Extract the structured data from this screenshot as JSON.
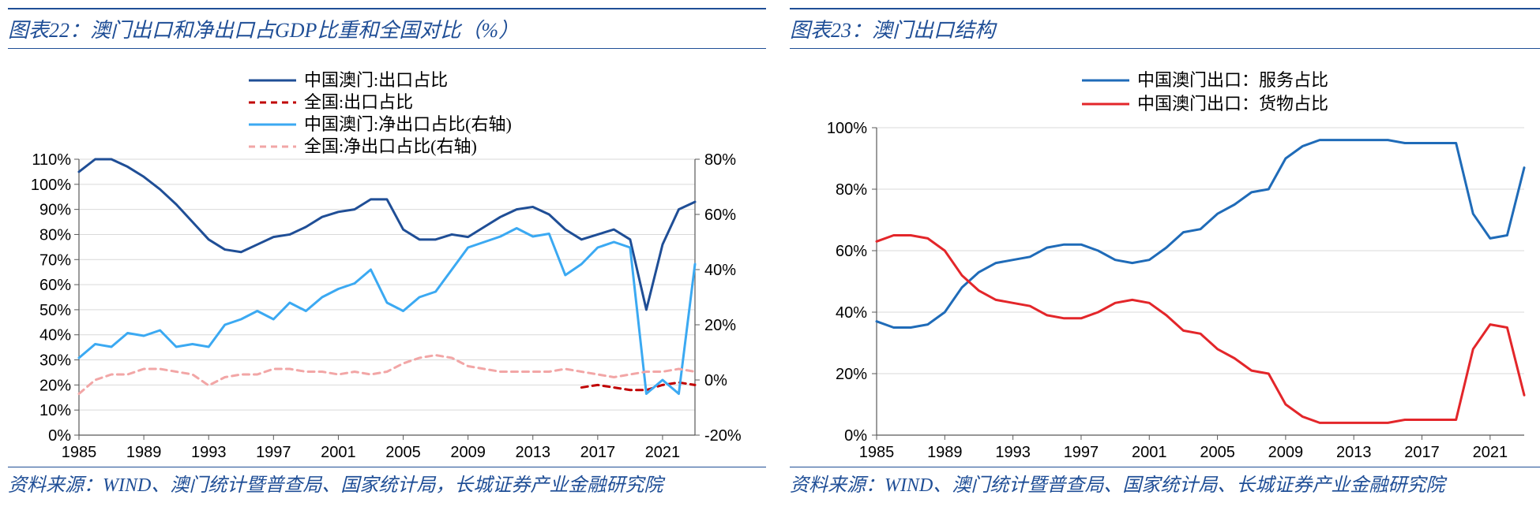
{
  "left": {
    "title": "图表22：澳门出口和净出口占GDP比重和全国对比（%）",
    "source": "资料来源：WIND、澳门统计暨普查局、国家统计局，长城证券产业金融研究院",
    "type": "line",
    "background_color": "#ffffff",
    "grid_color": "#d9d9d9",
    "axis_color": "#595959",
    "label_fontsize": 20,
    "x": {
      "min": 1985,
      "max": 2023,
      "ticks": [
        1985,
        1989,
        1993,
        1997,
        2001,
        2005,
        2009,
        2013,
        2017,
        2021
      ]
    },
    "yL": {
      "min": 0,
      "max": 110,
      "step": 10,
      "suffix": "%"
    },
    "yR": {
      "min": -20,
      "max": 80,
      "step": 20,
      "suffix": "%"
    },
    "legend_items": [
      {
        "label": "中国澳门:出口占比",
        "color": "#1f4e96",
        "dash": null,
        "width": 3,
        "axis": "L"
      },
      {
        "label": "全国:出口占比",
        "color": "#c00000",
        "dash": "8 6",
        "width": 3,
        "axis": "L"
      },
      {
        "label": "中国澳门:净出口占比(右轴)",
        "color": "#3ba9f2",
        "dash": null,
        "width": 3,
        "axis": "R"
      },
      {
        "label": "全国:净出口占比(右轴)",
        "color": "#f2a6a6",
        "dash": "8 6",
        "width": 3,
        "axis": "R"
      }
    ],
    "series": {
      "macau_export": {
        "color": "#1f4e96",
        "dash": null,
        "width": 3,
        "axis": "L",
        "x": [
          1985,
          1986,
          1987,
          1988,
          1989,
          1990,
          1991,
          1992,
          1993,
          1994,
          1995,
          1996,
          1997,
          1998,
          1999,
          2000,
          2001,
          2002,
          2003,
          2004,
          2005,
          2006,
          2007,
          2008,
          2009,
          2010,
          2011,
          2012,
          2013,
          2014,
          2015,
          2016,
          2017,
          2018,
          2019,
          2020,
          2021,
          2022,
          2023
        ],
        "y": [
          105,
          110,
          110,
          107,
          103,
          98,
          92,
          85,
          78,
          74,
          73,
          76,
          79,
          80,
          83,
          87,
          89,
          90,
          94,
          94,
          82,
          78,
          78,
          80,
          79,
          83,
          87,
          90,
          91,
          88,
          82,
          78,
          80,
          82,
          78,
          50,
          76,
          90,
          93
        ]
      },
      "china_export": {
        "color": "#c00000",
        "dash": "8 6",
        "width": 3,
        "axis": "L",
        "x": [
          2016,
          2017,
          2018,
          2019,
          2020,
          2021,
          2022,
          2023
        ],
        "y": [
          19,
          20,
          19,
          18,
          18,
          20,
          21,
          20
        ]
      },
      "macau_net": {
        "color": "#3ba9f2",
        "dash": null,
        "width": 3,
        "axis": "R",
        "x": [
          1985,
          1986,
          1987,
          1988,
          1989,
          1990,
          1991,
          1992,
          1993,
          1994,
          1995,
          1996,
          1997,
          1998,
          1999,
          2000,
          2001,
          2002,
          2003,
          2004,
          2005,
          2006,
          2007,
          2008,
          2009,
          2010,
          2011,
          2012,
          2013,
          2014,
          2015,
          2016,
          2017,
          2018,
          2019,
          2020,
          2021,
          2022,
          2023
        ],
        "y": [
          8,
          13,
          12,
          17,
          16,
          18,
          12,
          13,
          12,
          20,
          22,
          25,
          22,
          28,
          25,
          30,
          33,
          35,
          40,
          28,
          25,
          30,
          32,
          40,
          48,
          50,
          52,
          55,
          52,
          53,
          38,
          42,
          48,
          50,
          48,
          -5,
          0,
          -5,
          42
        ]
      },
      "china_net": {
        "color": "#f2a6a6",
        "dash": "8 6",
        "width": 3,
        "axis": "R",
        "x": [
          1985,
          1986,
          1987,
          1988,
          1989,
          1990,
          1991,
          1992,
          1993,
          1994,
          1995,
          1996,
          1997,
          1998,
          1999,
          2000,
          2001,
          2002,
          2003,
          2004,
          2005,
          2006,
          2007,
          2008,
          2009,
          2010,
          2011,
          2012,
          2013,
          2014,
          2015,
          2016,
          2017,
          2018,
          2019,
          2020,
          2021,
          2022,
          2023
        ],
        "y": [
          -5,
          0,
          2,
          2,
          4,
          4,
          3,
          2,
          -2,
          1,
          2,
          2,
          4,
          4,
          3,
          3,
          2,
          3,
          2,
          3,
          6,
          8,
          9,
          8,
          5,
          4,
          3,
          3,
          3,
          3,
          4,
          3,
          2,
          1,
          2,
          3,
          3,
          4,
          3
        ]
      }
    }
  },
  "right": {
    "title": "图表23：澳门出口结构",
    "source": "资料来源：WIND、澳门统计暨普查局、国家统计局、长城证券产业金融研究院",
    "type": "line",
    "background_color": "#ffffff",
    "grid_color": "#d9d9d9",
    "axis_color": "#595959",
    "label_fontsize": 20,
    "x": {
      "min": 1985,
      "max": 2023,
      "ticks": [
        1985,
        1989,
        1993,
        1997,
        2001,
        2005,
        2009,
        2013,
        2017,
        2021
      ]
    },
    "y": {
      "min": 0,
      "max": 100,
      "step": 20,
      "suffix": "%"
    },
    "legend_items": [
      {
        "label": "中国澳门出口：服务占比",
        "color": "#1f6bb8",
        "dash": null,
        "width": 3
      },
      {
        "label": "中国澳门出口：货物占比",
        "color": "#e3262a",
        "dash": null,
        "width": 3
      }
    ],
    "series": {
      "services": {
        "color": "#1f6bb8",
        "dash": null,
        "width": 3,
        "x": [
          1985,
          1986,
          1987,
          1988,
          1989,
          1990,
          1991,
          1992,
          1993,
          1994,
          1995,
          1996,
          1997,
          1998,
          1999,
          2000,
          2001,
          2002,
          2003,
          2004,
          2005,
          2006,
          2007,
          2008,
          2009,
          2010,
          2011,
          2012,
          2013,
          2014,
          2015,
          2016,
          2017,
          2018,
          2019,
          2020,
          2021,
          2022,
          2023
        ],
        "y": [
          37,
          35,
          35,
          36,
          40,
          48,
          53,
          56,
          57,
          58,
          61,
          62,
          62,
          60,
          57,
          56,
          57,
          61,
          66,
          67,
          72,
          75,
          79,
          80,
          90,
          94,
          96,
          96,
          96,
          96,
          96,
          95,
          95,
          95,
          95,
          72,
          64,
          65,
          87
        ]
      },
      "goods": {
        "color": "#e3262a",
        "dash": null,
        "width": 3,
        "x": [
          1985,
          1986,
          1987,
          1988,
          1989,
          1990,
          1991,
          1992,
          1993,
          1994,
          1995,
          1996,
          1997,
          1998,
          1999,
          2000,
          2001,
          2002,
          2003,
          2004,
          2005,
          2006,
          2007,
          2008,
          2009,
          2010,
          2011,
          2012,
          2013,
          2014,
          2015,
          2016,
          2017,
          2018,
          2019,
          2020,
          2021,
          2022,
          2023
        ],
        "y": [
          63,
          65,
          65,
          64,
          60,
          52,
          47,
          44,
          43,
          42,
          39,
          38,
          38,
          40,
          43,
          44,
          43,
          39,
          34,
          33,
          28,
          25,
          21,
          20,
          10,
          6,
          4,
          4,
          4,
          4,
          4,
          5,
          5,
          5,
          5,
          28,
          36,
          35,
          13
        ]
      }
    }
  }
}
